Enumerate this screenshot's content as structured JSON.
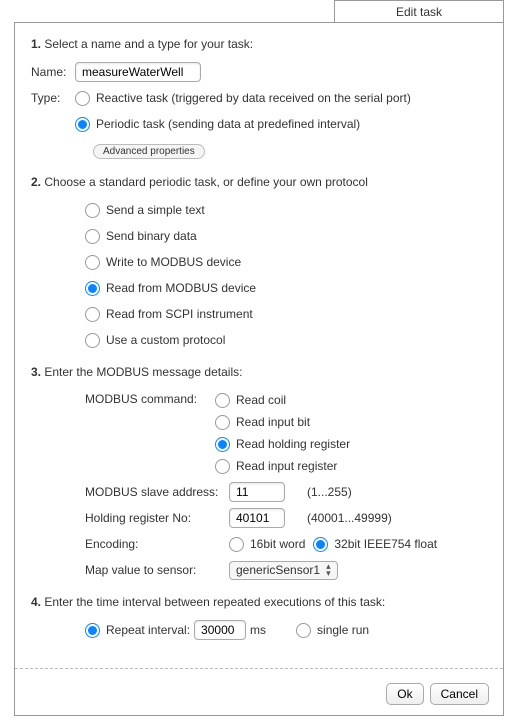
{
  "tab_title": "Edit task",
  "step1": {
    "title_num": "1.",
    "title_text": "Select a name and a type for your task:",
    "name_label": "Name:",
    "name_value": "measureWaterWell",
    "type_label": "Type:",
    "reactive_label": "Reactive task (triggered by data received on the serial port)",
    "periodic_label": "Periodic task (sending data at predefined interval)",
    "advanced_label": "Advanced properties",
    "selected": "periodic"
  },
  "step2": {
    "title_num": "2.",
    "title_text": "Choose a standard periodic task, or define your own protocol",
    "options": [
      "Send a simple text",
      "Send binary data",
      "Write to MODBUS device",
      "Read from MODBUS device",
      "Read from SCPI instrument",
      "Use a custom protocol"
    ],
    "selected_index": 3
  },
  "step3": {
    "title_num": "3.",
    "title_text": "Enter the MODBUS message details:",
    "cmd_label": "MODBUS command:",
    "cmd_options": [
      "Read coil",
      "Read input bit",
      "Read holding register",
      "Read input register"
    ],
    "cmd_selected_index": 2,
    "slave_label": "MODBUS slave address:",
    "slave_value": "11",
    "slave_hint": "(1...255)",
    "holdreg_label": "Holding register No:",
    "holdreg_value": "40101",
    "holdreg_hint": "(40001...49999)",
    "encoding_label": "Encoding:",
    "enc_options": [
      "16bit word",
      "32bit IEEE754 float"
    ],
    "enc_selected_index": 1,
    "map_label": "Map value to sensor:",
    "map_value": "genericSensor1"
  },
  "step4": {
    "title_num": "4.",
    "title_text": "Enter the time interval between repeated executions of this task:",
    "repeat_label": "Repeat interval:",
    "repeat_value": "30000",
    "repeat_unit": "ms",
    "single_label": "single run",
    "selected": "repeat"
  },
  "footer": {
    "ok": "Ok",
    "cancel": "Cancel"
  }
}
